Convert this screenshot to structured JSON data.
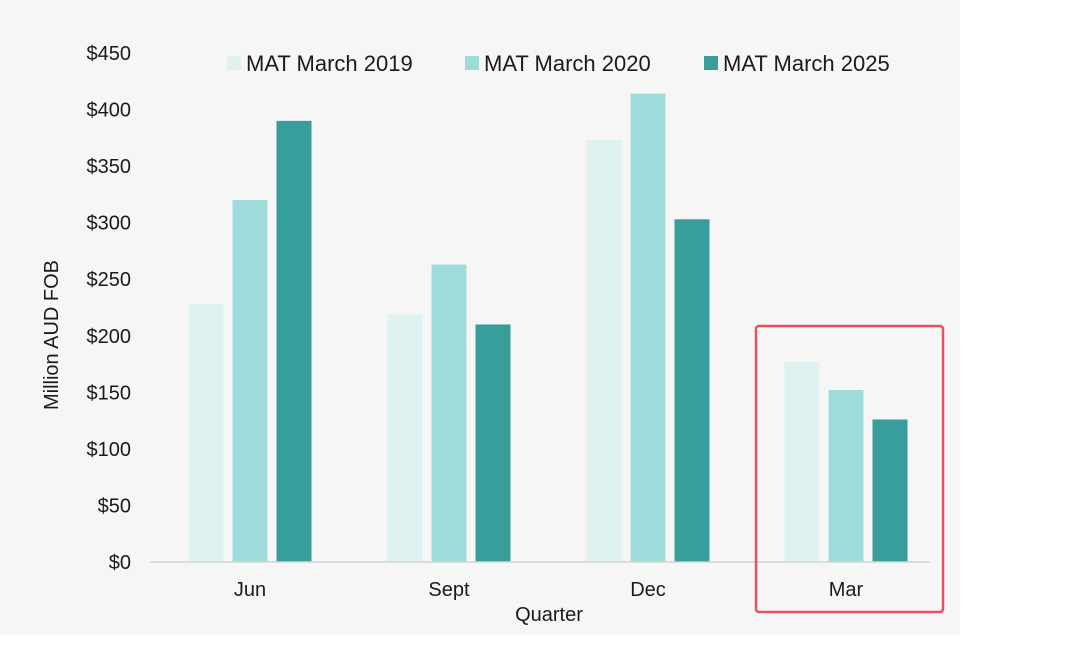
{
  "chart_data": {
    "type": "bar",
    "title": "",
    "xlabel": "Quarter",
    "ylabel": "Million AUD FOB",
    "categories": [
      "Jun",
      "Sept",
      "Dec",
      "Mar"
    ],
    "series": [
      {
        "name": "MAT March 2019",
        "color": "#dff2f2",
        "values": [
          228,
          219,
          373,
          177
        ]
      },
      {
        "name": "MAT March 2020",
        "color": "#9fdcd9",
        "values": [
          320,
          263,
          414,
          152
        ]
      },
      {
        "name": "MAT March 2025",
        "color": "#379e9c",
        "values": [
          390,
          210,
          303,
          126
        ]
      }
    ],
    "ylim": [
      0,
      450
    ],
    "yticks": [
      0,
      50,
      100,
      150,
      200,
      250,
      300,
      350,
      400,
      450
    ],
    "ytick_labels": [
      "$0",
      "$50",
      "$100",
      "$150",
      "$200",
      "$250",
      "$300",
      "$350",
      "$400",
      "$450"
    ],
    "grid": false,
    "legend_position": "top",
    "highlight": {
      "category": "Mar",
      "color": "#e8505b"
    }
  }
}
